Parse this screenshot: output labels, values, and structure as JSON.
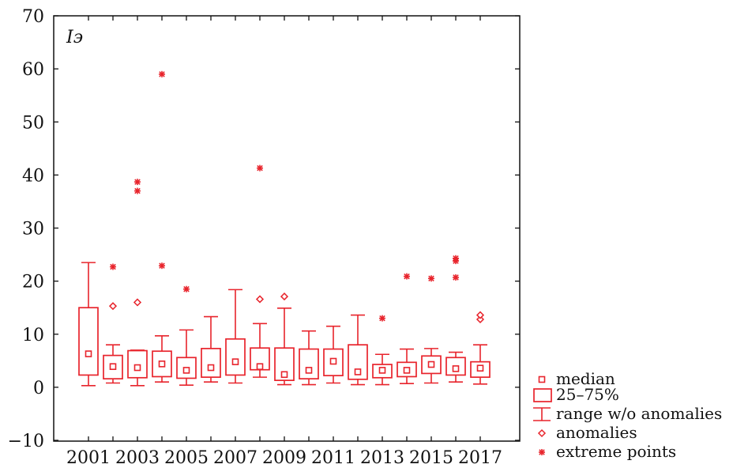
{
  "chart_data": {
    "type": "box",
    "ylabel": "Iэ",
    "ylim": [
      -10,
      70
    ],
    "yticks": [
      -10,
      0,
      10,
      20,
      30,
      40,
      50,
      60,
      70
    ],
    "x_tick_labels": [
      "2001",
      "2003",
      "2005",
      "2007",
      "2009",
      "2011",
      "2013",
      "2015",
      "2017"
    ],
    "color": "#e8242c",
    "legend": {
      "position": "bottom-right-outside",
      "entries": [
        {
          "key": "median",
          "label": "median"
        },
        {
          "key": "box",
          "label": "25–75%"
        },
        {
          "key": "whisker",
          "label": "range w/o anomalies"
        },
        {
          "key": "anomaly",
          "label": "anomalies"
        },
        {
          "key": "extreme",
          "label": "extreme points"
        }
      ]
    },
    "years": [
      {
        "year": 2001,
        "whisker_low": 0.3,
        "q1": 2.3,
        "median": 6.3,
        "q3": 15.0,
        "whisker_high": 23.5,
        "anomalies": [],
        "extremes": []
      },
      {
        "year": 2002,
        "whisker_low": 0.8,
        "q1": 1.6,
        "median": 3.9,
        "q3": 6.0,
        "whisker_high": 8.0,
        "anomalies": [
          15.3
        ],
        "extremes": [
          22.7
        ]
      },
      {
        "year": 2003,
        "whisker_low": 0.3,
        "q1": 1.8,
        "median": 3.7,
        "q3": 6.9,
        "whisker_high": 7.0,
        "anomalies": [
          16.0
        ],
        "extremes": [
          37.0,
          38.7
        ]
      },
      {
        "year": 2004,
        "whisker_low": 1.0,
        "q1": 2.0,
        "median": 4.4,
        "q3": 6.8,
        "whisker_high": 9.7,
        "anomalies": [],
        "extremes": [
          22.9,
          59.0
        ]
      },
      {
        "year": 2005,
        "whisker_low": 0.4,
        "q1": 1.7,
        "median": 3.2,
        "q3": 5.6,
        "whisker_high": 10.8,
        "anomalies": [],
        "extremes": [
          18.5
        ]
      },
      {
        "year": 2006,
        "whisker_low": 1.0,
        "q1": 1.9,
        "median": 3.7,
        "q3": 7.3,
        "whisker_high": 13.3,
        "anomalies": [],
        "extremes": []
      },
      {
        "year": 2007,
        "whisker_low": 0.8,
        "q1": 2.3,
        "median": 4.8,
        "q3": 9.1,
        "whisker_high": 18.4,
        "anomalies": [],
        "extremes": []
      },
      {
        "year": 2008,
        "whisker_low": 1.9,
        "q1": 3.3,
        "median": 3.9,
        "q3": 7.4,
        "whisker_high": 12.0,
        "anomalies": [
          16.6
        ],
        "extremes": [
          41.3
        ]
      },
      {
        "year": 2009,
        "whisker_low": 0.5,
        "q1": 1.3,
        "median": 2.4,
        "q3": 7.4,
        "whisker_high": 14.9,
        "anomalies": [
          17.1
        ],
        "extremes": []
      },
      {
        "year": 2010,
        "whisker_low": 0.5,
        "q1": 1.6,
        "median": 3.2,
        "q3": 7.2,
        "whisker_high": 10.6,
        "anomalies": [],
        "extremes": []
      },
      {
        "year": 2011,
        "whisker_low": 0.8,
        "q1": 2.2,
        "median": 4.9,
        "q3": 7.2,
        "whisker_high": 11.5,
        "anomalies": [],
        "extremes": []
      },
      {
        "year": 2012,
        "whisker_low": 0.5,
        "q1": 1.5,
        "median": 2.9,
        "q3": 8.0,
        "whisker_high": 13.6,
        "anomalies": [],
        "extremes": []
      },
      {
        "year": 2013,
        "whisker_low": 0.5,
        "q1": 1.8,
        "median": 3.2,
        "q3": 4.3,
        "whisker_high": 6.2,
        "anomalies": [],
        "extremes": [
          13.0
        ]
      },
      {
        "year": 2014,
        "whisker_low": 0.7,
        "q1": 2.0,
        "median": 3.2,
        "q3": 4.7,
        "whisker_high": 7.2,
        "anomalies": [],
        "extremes": [
          20.9
        ]
      },
      {
        "year": 2015,
        "whisker_low": 0.8,
        "q1": 2.6,
        "median": 4.3,
        "q3": 5.9,
        "whisker_high": 7.3,
        "anomalies": [],
        "extremes": [
          20.5
        ]
      },
      {
        "year": 2016,
        "whisker_low": 1.0,
        "q1": 2.3,
        "median": 3.5,
        "q3": 5.6,
        "whisker_high": 6.6,
        "anomalies": [],
        "extremes": [
          20.7,
          23.8,
          24.3
        ]
      },
      {
        "year": 2017,
        "whisker_low": 0.6,
        "q1": 1.9,
        "median": 3.6,
        "q3": 4.8,
        "whisker_high": 8.0,
        "anomalies": [
          12.8,
          13.6
        ],
        "extremes": []
      }
    ]
  }
}
